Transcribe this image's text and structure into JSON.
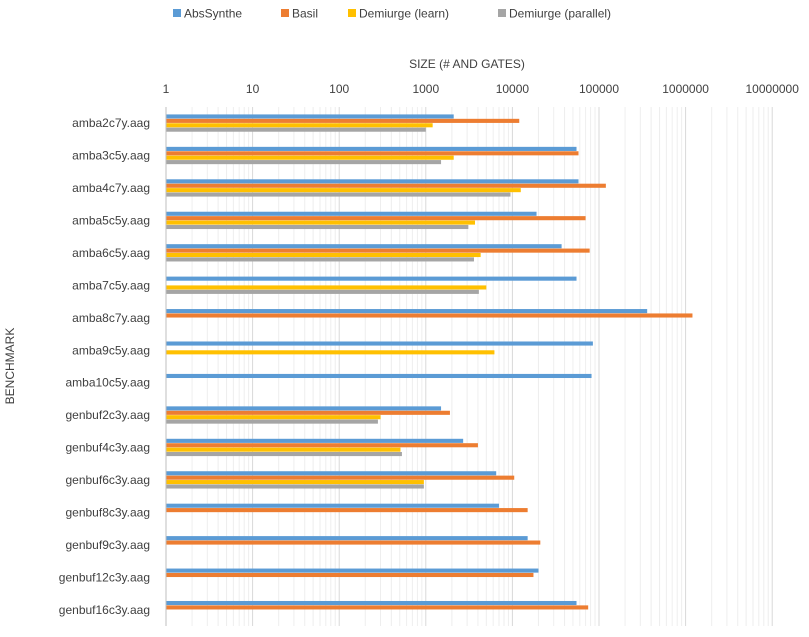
{
  "chart_data": {
    "type": "bar",
    "orientation": "horizontal",
    "title": "",
    "xlabel": "SIZE (# AND GATES)",
    "ylabel": "BENCHMARK",
    "x_scale": "log",
    "xlim": [
      1,
      10000000
    ],
    "x_ticks": [
      "1",
      "10",
      "100",
      "1000",
      "10000",
      "100000",
      "1000000",
      "10000000"
    ],
    "grid": "vertical major and minor",
    "legend_position": "top",
    "categories": [
      "amba2c7y.aag",
      "amba3c5y.aag",
      "amba4c7y.aag",
      "amba5c5y.aag",
      "amba6c5y.aag",
      "amba7c5y.aag",
      "amba8c7y.aag",
      "amba9c5y.aag",
      "amba10c5y.aag",
      "genbuf2c3y.aag",
      "genbuf4c3y.aag",
      "genbuf6c3y.aag",
      "genbuf8c3y.aag",
      "genbuf9c3y.aag",
      "genbuf12c3y.aag",
      "genbuf16c3y.aag"
    ],
    "series": [
      {
        "name": "AbsSynthe",
        "color": "#5B9BD5",
        "values": [
          2100,
          55000,
          58000,
          19000,
          37000,
          55000,
          360000,
          85000,
          82000,
          1500,
          2700,
          6500,
          7000,
          15000,
          20000,
          55000
        ]
      },
      {
        "name": "Basil",
        "color": "#ED7D31",
        "values": [
          12000,
          58000,
          120000,
          70000,
          78000,
          null,
          1200000,
          null,
          null,
          1900,
          4000,
          10500,
          15000,
          21000,
          17500,
          75000
        ]
      },
      {
        "name": "Demiurge (learn)",
        "color": "#FFC000",
        "values": [
          1200,
          2100,
          12500,
          3700,
          4300,
          5000,
          null,
          6200,
          null,
          300,
          510,
          950,
          null,
          null,
          null,
          null
        ]
      },
      {
        "name": "Demiurge (parallel)",
        "color": "#A5A5A5",
        "values": [
          1000,
          1500,
          9500,
          3100,
          3600,
          4100,
          null,
          null,
          null,
          280,
          530,
          950,
          null,
          null,
          null,
          null
        ]
      }
    ]
  }
}
